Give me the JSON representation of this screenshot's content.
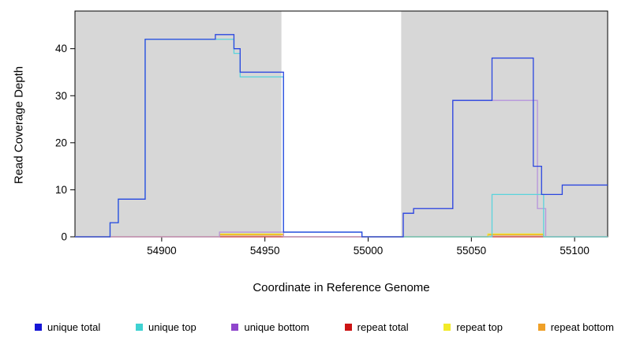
{
  "chart_data": {
    "type": "line",
    "subtype": "step",
    "title": "",
    "xlabel": "Coordinate in Reference Genome",
    "ylabel": "Read Coverage Depth",
    "xlim": [
      54858,
      55116
    ],
    "ylim": [
      0,
      48
    ],
    "xticks": [
      54900,
      54950,
      55000,
      55050,
      55100
    ],
    "yticks": [
      0,
      10,
      20,
      30,
      40
    ],
    "grid": false,
    "legend_position": "bottom",
    "shaded_regions": [
      {
        "x0": 54858,
        "x1": 54958,
        "color": "#d7d7d7"
      },
      {
        "x0": 55016,
        "x1": 55116,
        "color": "#d7d7d7"
      }
    ],
    "series": [
      {
        "name": "unique total",
        "color": "#2a46e0",
        "points": [
          [
            54858,
            0
          ],
          [
            54875,
            3
          ],
          [
            54879,
            8
          ],
          [
            54892,
            42
          ],
          [
            54926,
            43
          ],
          [
            54935,
            40
          ],
          [
            54938,
            35
          ],
          [
            54959,
            1
          ],
          [
            54997,
            0
          ],
          [
            55017,
            5
          ],
          [
            55022,
            6
          ],
          [
            55041,
            29
          ],
          [
            55060,
            38
          ],
          [
            55080,
            15
          ],
          [
            55084,
            9
          ],
          [
            55094,
            11
          ],
          [
            55116,
            11
          ]
        ]
      },
      {
        "name": "unique top",
        "color": "#5ad4dc",
        "points": [
          [
            54858,
            0
          ],
          [
            54875,
            3
          ],
          [
            54879,
            8
          ],
          [
            54892,
            42
          ],
          [
            54926,
            42
          ],
          [
            54935,
            39
          ],
          [
            54938,
            34
          ],
          [
            54959,
            1
          ],
          [
            54997,
            0
          ],
          [
            55060,
            9
          ],
          [
            55085,
            0
          ],
          [
            55116,
            0
          ]
        ]
      },
      {
        "name": "unique bottom",
        "color": "#b694dc",
        "points": [
          [
            54858,
            0
          ],
          [
            54928,
            1
          ],
          [
            54959,
            0
          ],
          [
            55017,
            5
          ],
          [
            55022,
            6
          ],
          [
            55041,
            29
          ],
          [
            55081,
            29
          ],
          [
            55082,
            6
          ],
          [
            55086,
            0
          ],
          [
            55116,
            0
          ]
        ]
      },
      {
        "name": "repeat total",
        "color": "#cc3333",
        "points": [
          [
            54858,
            0
          ],
          [
            55116,
            0
          ]
        ]
      },
      {
        "name": "repeat top",
        "color": "#efe32e",
        "points": [
          [
            54858,
            0
          ],
          [
            54928,
            0.6
          ],
          [
            54959,
            0
          ],
          [
            55058,
            0.6
          ],
          [
            55085,
            0
          ],
          [
            55116,
            0
          ]
        ]
      },
      {
        "name": "repeat bottom",
        "color": "#f2a024",
        "points": [
          [
            54858,
            0
          ],
          [
            54928,
            0.4
          ],
          [
            54959,
            0
          ],
          [
            55058,
            0.4
          ],
          [
            55085,
            0
          ],
          [
            55116,
            0
          ]
        ]
      }
    ],
    "legend": [
      {
        "label": "unique total",
        "color": "#1616d6"
      },
      {
        "label": "unique top",
        "color": "#3fd2d2"
      },
      {
        "label": "unique bottom",
        "color": "#8f46cc"
      },
      {
        "label": "repeat total",
        "color": "#cc1414"
      },
      {
        "label": "repeat top",
        "color": "#f2ea28"
      },
      {
        "label": "repeat bottom",
        "color": "#efa028"
      }
    ]
  }
}
